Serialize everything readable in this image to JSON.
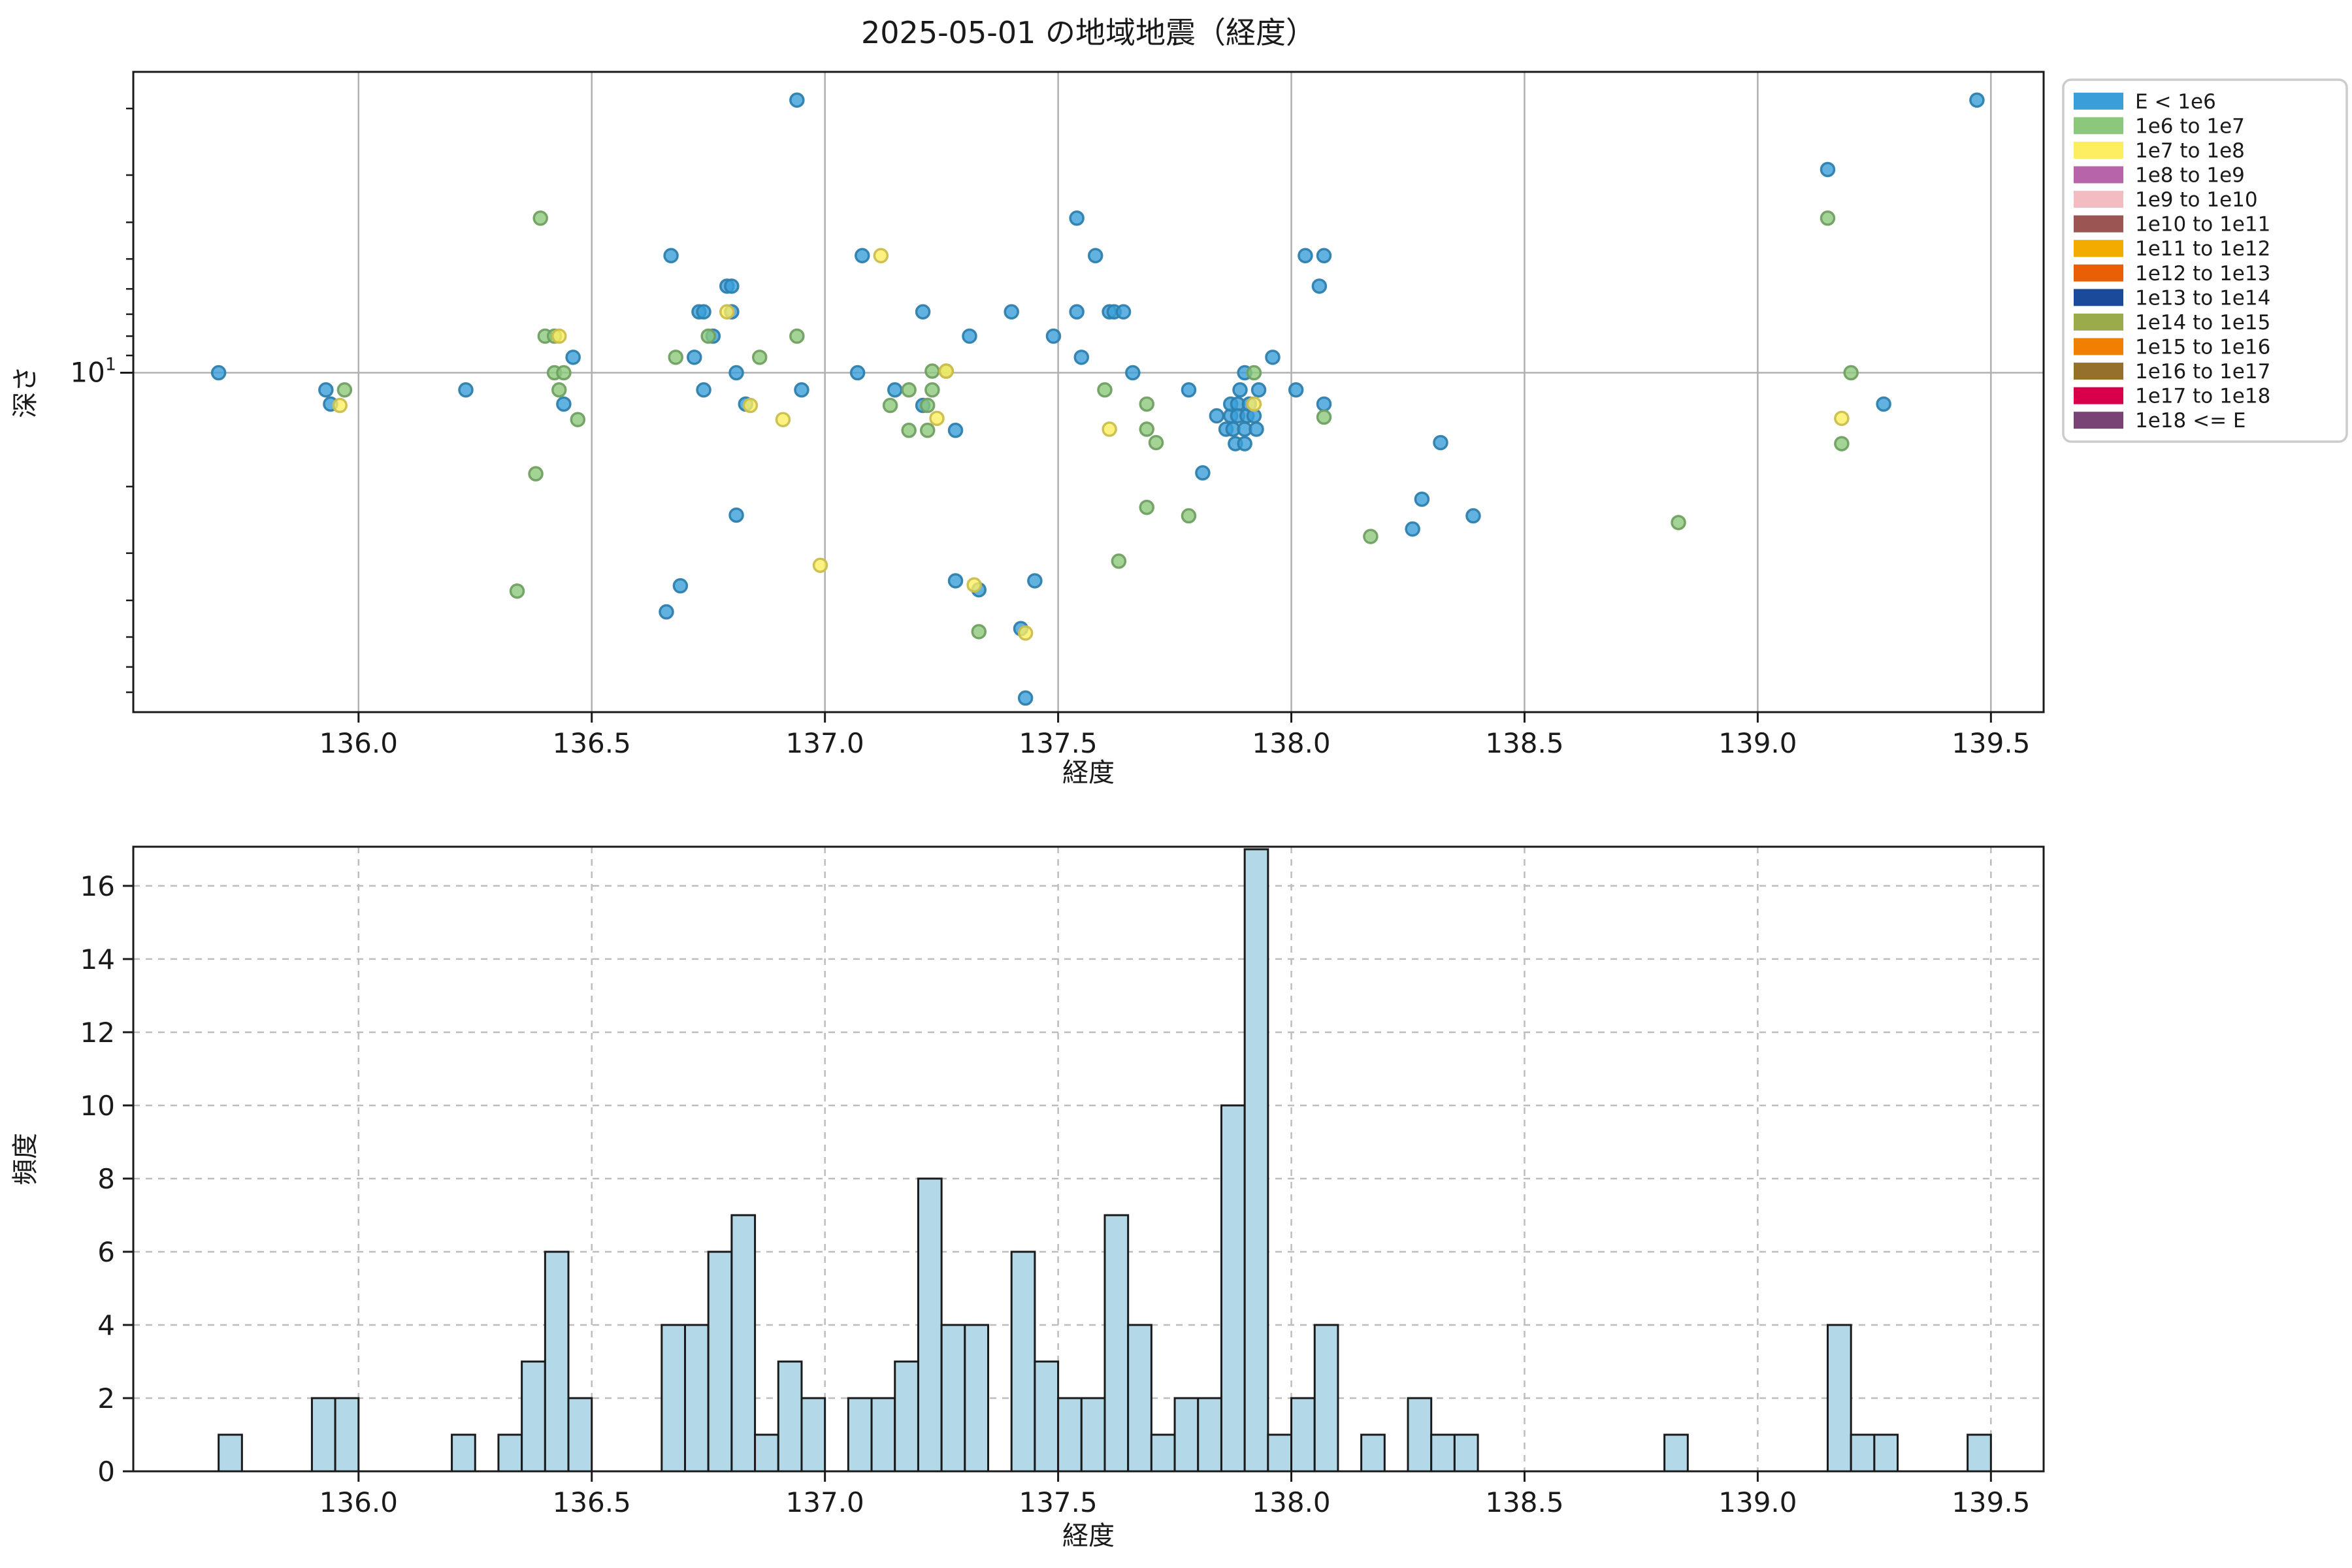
{
  "legend": {
    "items": [
      {
        "label": "E < 1e6",
        "color": "#3a9fd9"
      },
      {
        "label": "1e6 to 1e7",
        "color": "#8cc87b"
      },
      {
        "label": "1e7 to 1e8",
        "color": "#fcee60"
      },
      {
        "label": "1e8 to 1e9",
        "color": "#b864aa"
      },
      {
        "label": "1e9 to 1e10",
        "color": "#f3bcc0"
      },
      {
        "label": "1e10 to 1e11",
        "color": "#9b5653"
      },
      {
        "label": "1e11 to 1e12",
        "color": "#f2ac00"
      },
      {
        "label": "1e12 to 1e13",
        "color": "#ea5f03"
      },
      {
        "label": "1e13 to 1e14",
        "color": "#1c4a9b"
      },
      {
        "label": "1e14 to 1e15",
        "color": "#9aab4c"
      },
      {
        "label": "1e15 to 1e16",
        "color": "#f08002"
      },
      {
        "label": "1e16 to 1e17",
        "color": "#95702b"
      },
      {
        "label": "1e17 to 1e18",
        "color": "#d8004a"
      },
      {
        "label": "1e18 <= E",
        "color": "#7a4376"
      }
    ]
  },
  "chart_data": [
    {
      "type": "scatter",
      "title": "2025-05-01 の地域地震（経度）",
      "xlabel": "経度",
      "ylabel": "深さ",
      "xlim": [
        135.517,
        139.613
      ],
      "ylim": [
        1.6,
        79
      ],
      "yscale": "log",
      "y_inverted": true,
      "grid": "x-solid, y-line-at-10",
      "xticks": [
        136.0,
        136.5,
        137.0,
        137.5,
        138.0,
        138.5,
        139.0,
        139.5
      ],
      "ytick_major": 10,
      "ytick_major_label": {
        "base": "10",
        "exp": "1"
      },
      "yticks_minor": [
        2,
        3,
        4,
        5,
        6,
        7,
        8,
        9,
        20,
        30,
        40,
        50,
        60,
        70
      ],
      "legend_position": "outside upper right",
      "series": [
        {
          "name": "E < 1e6",
          "color": "#3a9fd9",
          "points": [
            [
              135.7,
              10.0
            ],
            [
              135.93,
              11.1
            ],
            [
              135.94,
              12.1
            ],
            [
              136.23,
              11.1
            ],
            [
              136.44,
              12.1
            ],
            [
              136.46,
              9.1
            ],
            [
              136.66,
              42.9
            ],
            [
              136.67,
              4.9
            ],
            [
              136.69,
              36.6
            ],
            [
              136.72,
              9.1
            ],
            [
              136.73,
              6.9
            ],
            [
              136.74,
              6.9
            ],
            [
              136.74,
              11.1
            ],
            [
              136.76,
              8.0
            ],
            [
              136.79,
              5.9
            ],
            [
              136.8,
              5.9
            ],
            [
              136.8,
              6.9
            ],
            [
              136.81,
              10.0
            ],
            [
              136.81,
              23.8
            ],
            [
              136.83,
              12.1
            ],
            [
              136.94,
              1.9
            ],
            [
              136.95,
              11.1
            ],
            [
              137.07,
              10.0
            ],
            [
              137.08,
              4.9
            ],
            [
              137.15,
              11.1
            ],
            [
              137.21,
              6.9
            ],
            [
              137.21,
              12.2
            ],
            [
              137.28,
              14.2
            ],
            [
              137.28,
              35.5
            ],
            [
              137.31,
              8.0
            ],
            [
              137.33,
              37.5
            ],
            [
              137.4,
              6.9
            ],
            [
              137.42,
              47.5
            ],
            [
              137.43,
              72.5
            ],
            [
              137.45,
              35.5
            ],
            [
              137.49,
              8.0
            ],
            [
              137.54,
              3.9
            ],
            [
              137.54,
              6.9
            ],
            [
              137.55,
              9.1
            ],
            [
              137.58,
              4.9
            ],
            [
              137.61,
              6.9
            ],
            [
              137.62,
              6.9
            ],
            [
              137.64,
              6.9
            ],
            [
              137.66,
              10.0
            ],
            [
              137.78,
              11.1
            ],
            [
              137.81,
              18.4
            ],
            [
              137.84,
              13.0
            ],
            [
              137.86,
              14.1
            ],
            [
              137.87,
              13.0
            ],
            [
              137.87,
              12.1
            ],
            [
              137.875,
              14.1
            ],
            [
              137.88,
              15.4
            ],
            [
              137.885,
              12.1
            ],
            [
              137.885,
              13.0
            ],
            [
              137.89,
              11.1
            ],
            [
              137.9,
              10.0
            ],
            [
              137.9,
              14.1
            ],
            [
              137.9,
              15.4
            ],
            [
              137.905,
              13.0
            ],
            [
              137.91,
              12.1
            ],
            [
              137.92,
              13.0
            ],
            [
              137.925,
              14.1
            ],
            [
              137.93,
              11.1
            ],
            [
              137.96,
              9.1
            ],
            [
              138.01,
              11.1
            ],
            [
              138.03,
              4.9
            ],
            [
              138.06,
              5.9
            ],
            [
              138.07,
              4.9
            ],
            [
              138.07,
              12.1
            ],
            [
              138.26,
              25.9
            ],
            [
              138.28,
              21.6
            ],
            [
              138.32,
              15.3
            ],
            [
              138.39,
              23.9
            ],
            [
              139.15,
              2.9
            ],
            [
              139.27,
              12.1
            ],
            [
              139.47,
              1.9
            ]
          ]
        },
        {
          "name": "1e6 to 1e7",
          "color": "#8cc87b",
          "points": [
            [
              135.97,
              11.1
            ],
            [
              136.34,
              37.8
            ],
            [
              136.38,
              18.5
            ],
            [
              136.39,
              3.9
            ],
            [
              136.4,
              8.0
            ],
            [
              136.42,
              8.0
            ],
            [
              136.42,
              10.0
            ],
            [
              136.43,
              11.1
            ],
            [
              136.44,
              10.0
            ],
            [
              136.47,
              13.3
            ],
            [
              136.68,
              9.1
            ],
            [
              136.75,
              8.0
            ],
            [
              136.86,
              9.1
            ],
            [
              136.94,
              8.0
            ],
            [
              137.14,
              12.2
            ],
            [
              137.18,
              11.1
            ],
            [
              137.18,
              14.2
            ],
            [
              137.22,
              12.2
            ],
            [
              137.22,
              14.2
            ],
            [
              137.23,
              9.9
            ],
            [
              137.23,
              11.1
            ],
            [
              137.26,
              9.9
            ],
            [
              137.33,
              48.4
            ],
            [
              137.6,
              11.1
            ],
            [
              137.63,
              31.5
            ],
            [
              137.69,
              12.1
            ],
            [
              137.69,
              14.1
            ],
            [
              137.69,
              22.7
            ],
            [
              137.71,
              15.3
            ],
            [
              137.78,
              23.9
            ],
            [
              137.92,
              10.0
            ],
            [
              138.07,
              13.1
            ],
            [
              138.17,
              27.1
            ],
            [
              138.83,
              24.9
            ],
            [
              139.15,
              3.9
            ],
            [
              139.18,
              15.4
            ],
            [
              139.2,
              10.0
            ]
          ]
        },
        {
          "name": "1e7 to 1e8",
          "color": "#fcee60",
          "points": [
            [
              135.96,
              12.2
            ],
            [
              136.43,
              8.0
            ],
            [
              136.79,
              6.9
            ],
            [
              136.84,
              12.2
            ],
            [
              136.91,
              13.3
            ],
            [
              136.99,
              32.3
            ],
            [
              137.12,
              4.9
            ],
            [
              137.24,
              13.2
            ],
            [
              137.26,
              9.9
            ],
            [
              137.32,
              36.4
            ],
            [
              137.43,
              48.8
            ],
            [
              137.61,
              14.1
            ],
            [
              137.92,
              12.1
            ],
            [
              139.18,
              13.2
            ]
          ]
        }
      ]
    },
    {
      "type": "histogram",
      "xlabel": "経度",
      "ylabel": "頻度",
      "xlim": [
        135.517,
        139.613
      ],
      "ylim": [
        0,
        17.07
      ],
      "yticks": [
        0,
        2,
        4,
        6,
        8,
        10,
        12,
        14,
        16
      ],
      "xticks": [
        136.0,
        136.5,
        137.0,
        137.5,
        138.0,
        138.5,
        139.0,
        139.5
      ],
      "bin_width": 0.05,
      "bar_color": "#b3d9e8",
      "bar_edge": "#1a1a1a",
      "grid": "dashed",
      "bins": [
        {
          "x": 135.7,
          "count": 1
        },
        {
          "x": 135.9,
          "count": 2
        },
        {
          "x": 135.95,
          "count": 2
        },
        {
          "x": 136.2,
          "count": 1
        },
        {
          "x": 136.3,
          "count": 1
        },
        {
          "x": 136.35,
          "count": 3
        },
        {
          "x": 136.4,
          "count": 6
        },
        {
          "x": 136.45,
          "count": 2
        },
        {
          "x": 136.65,
          "count": 4
        },
        {
          "x": 136.7,
          "count": 4
        },
        {
          "x": 136.75,
          "count": 6
        },
        {
          "x": 136.8,
          "count": 7
        },
        {
          "x": 136.85,
          "count": 1
        },
        {
          "x": 136.9,
          "count": 3
        },
        {
          "x": 136.95,
          "count": 2
        },
        {
          "x": 137.05,
          "count": 2
        },
        {
          "x": 137.1,
          "count": 2
        },
        {
          "x": 137.15,
          "count": 3
        },
        {
          "x": 137.2,
          "count": 8
        },
        {
          "x": 137.25,
          "count": 4
        },
        {
          "x": 137.3,
          "count": 4
        },
        {
          "x": 137.4,
          "count": 6
        },
        {
          "x": 137.45,
          "count": 3
        },
        {
          "x": 137.5,
          "count": 2
        },
        {
          "x": 137.55,
          "count": 2
        },
        {
          "x": 137.6,
          "count": 7
        },
        {
          "x": 137.65,
          "count": 4
        },
        {
          "x": 137.7,
          "count": 1
        },
        {
          "x": 137.75,
          "count": 2
        },
        {
          "x": 137.8,
          "count": 2
        },
        {
          "x": 137.85,
          "count": 10
        },
        {
          "x": 137.9,
          "count": 17
        },
        {
          "x": 137.95,
          "count": 1
        },
        {
          "x": 138.0,
          "count": 2
        },
        {
          "x": 138.05,
          "count": 4
        },
        {
          "x": 138.15,
          "count": 1
        },
        {
          "x": 138.25,
          "count": 2
        },
        {
          "x": 138.3,
          "count": 1
        },
        {
          "x": 138.35,
          "count": 1
        },
        {
          "x": 138.8,
          "count": 1
        },
        {
          "x": 139.15,
          "count": 4
        },
        {
          "x": 139.2,
          "count": 1
        },
        {
          "x": 139.25,
          "count": 1
        },
        {
          "x": 139.45,
          "count": 1
        }
      ]
    }
  ]
}
